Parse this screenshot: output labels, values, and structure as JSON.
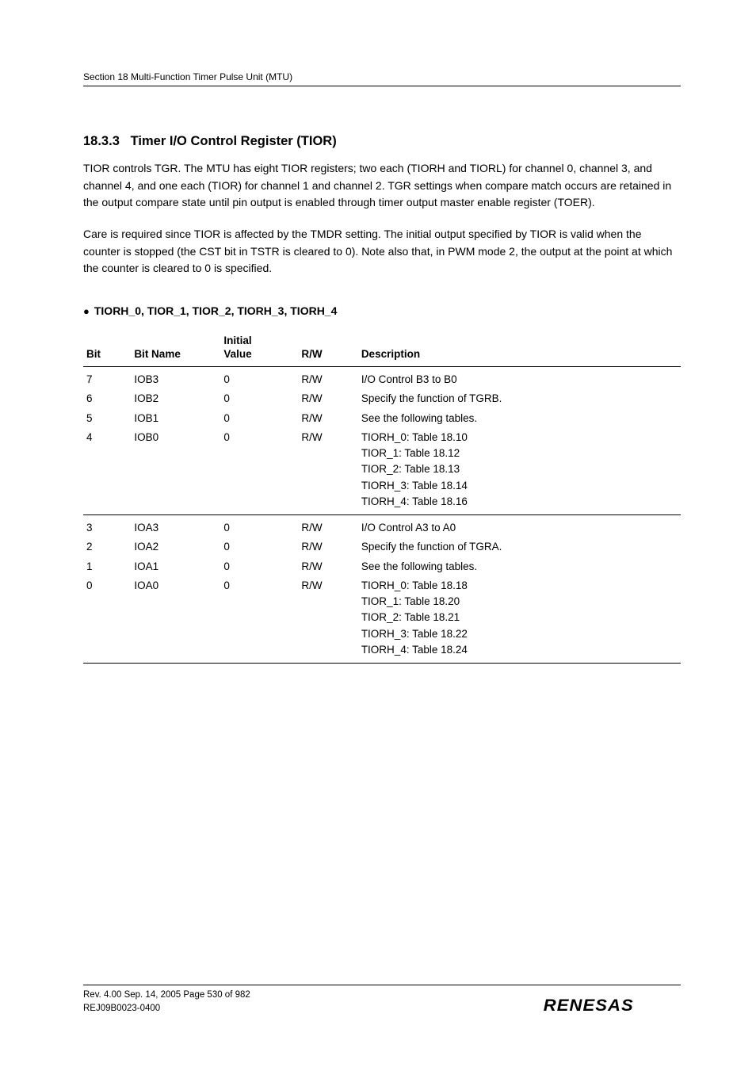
{
  "header": {
    "section": "Section 18   Multi-Function Timer Pulse Unit (MTU)"
  },
  "heading": {
    "number": "18.3.3",
    "title": "Timer I/O Control Register (TIOR)"
  },
  "paragraphs": {
    "p1": "TIOR controls TGR. The MTU has eight TIOR registers; two each (TIORH and TIORL) for channel 0, channel 3, and channel 4, and one each (TIOR) for channel 1 and channel 2. TGR settings when compare match occurs are retained in the output compare state until pin output is enabled through timer output master enable register (TOER).",
    "p2": "Care is required since TIOR is affected by the TMDR setting. The initial output specified by TIOR is valid when the counter is stopped (the CST bit in TSTR is cleared to 0). Note also that, in PWM mode 2, the output at the point at which the counter is cleared to 0 is specified."
  },
  "subheading": "TIORH_0, TIOR_1, TIOR_2, TIORH_3, TIORH_4",
  "table": {
    "columns": {
      "c0": "Bit",
      "c1": "Bit Name",
      "c2_l1": "Initial",
      "c2_l2": "Value",
      "c3": "R/W",
      "c4": "Description"
    },
    "rows": {
      "r0": {
        "bit": "7",
        "name": "IOB3",
        "init": "0",
        "rw": "R/W",
        "desc": "I/O Control B3 to B0"
      },
      "r1": {
        "bit": "6",
        "name": "IOB2",
        "init": "0",
        "rw": "R/W",
        "desc": "Specify the function of TGRB."
      },
      "r2": {
        "bit": "5",
        "name": "IOB1",
        "init": "0",
        "rw": "R/W",
        "desc": "See the following tables."
      },
      "r3": {
        "bit": "4",
        "name": "IOB0",
        "init": "0",
        "rw": "R/W",
        "d1": "TIORH_0: Table 18.10",
        "d2": "TIOR_1:   Table 18.12",
        "d3": "TIOR_2:   Table 18.13",
        "d4": "TIORH_3: Table 18.14",
        "d5": "TIORH_4: Table 18.16"
      },
      "r4": {
        "bit": "3",
        "name": "IOA3",
        "init": "0",
        "rw": "R/W",
        "desc": "I/O Control A3 to A0"
      },
      "r5": {
        "bit": "2",
        "name": "IOA2",
        "init": "0",
        "rw": "R/W",
        "desc": "Specify the function of TGRA."
      },
      "r6": {
        "bit": "1",
        "name": "IOA1",
        "init": "0",
        "rw": "R/W",
        "desc": "See the following tables."
      },
      "r7": {
        "bit": "0",
        "name": "IOA0",
        "init": "0",
        "rw": "R/W",
        "d1": "TIORH_0: Table 18.18",
        "d2": "TIOR_1:   Table 18.20",
        "d3": "TIOR_2:   Table 18.21",
        "d4": "TIORH_3: Table 18.22",
        "d5": "TIORH_4: Table 18.24"
      }
    }
  },
  "footer": {
    "line1": "Rev. 4.00  Sep. 14, 2005  Page 530 of 982",
    "line2": "REJ09B0023-0400",
    "logo": "RENESAS"
  }
}
